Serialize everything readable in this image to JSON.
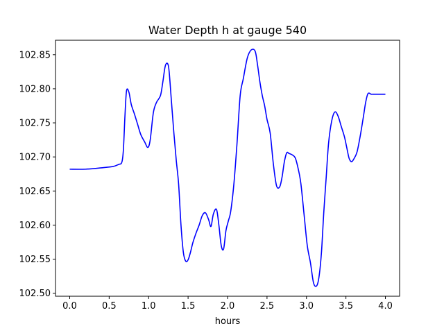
{
  "chart_data": {
    "type": "line",
    "title": "Water Depth h at gauge 540",
    "xlabel": "hours",
    "ylabel": "",
    "xlim": [
      -0.18,
      4.18
    ],
    "ylim": [
      102.4956,
      102.8712
    ],
    "xticks": [
      0.0,
      0.5,
      1.0,
      1.5,
      2.0,
      2.5,
      3.0,
      3.5,
      4.0
    ],
    "xtick_labels": [
      "0.0",
      "0.5",
      "1.0",
      "1.5",
      "2.0",
      "2.5",
      "3.0",
      "3.5",
      "4.0"
    ],
    "yticks": [
      102.5,
      102.55,
      102.6,
      102.65,
      102.7,
      102.75,
      102.8,
      102.85
    ],
    "ytick_labels": [
      "102.50",
      "102.55",
      "102.60",
      "102.65",
      "102.70",
      "102.75",
      "102.80",
      "102.85"
    ],
    "grid": false,
    "series": [
      {
        "color": "#0000ff",
        "x": [
          0.0,
          0.2,
          0.4,
          0.55,
          0.62,
          0.66,
          0.68,
          0.7,
          0.72,
          0.75,
          0.78,
          0.82,
          0.86,
          0.9,
          0.95,
          0.99,
          1.02,
          1.06,
          1.1,
          1.15,
          1.18,
          1.21,
          1.24,
          1.26,
          1.29,
          1.32,
          1.35,
          1.38,
          1.41,
          1.44,
          1.47,
          1.5,
          1.53,
          1.56,
          1.6,
          1.64,
          1.68,
          1.72,
          1.76,
          1.79,
          1.82,
          1.86,
          1.89,
          1.92,
          1.95,
          1.98,
          2.01,
          2.04,
          2.08,
          2.12,
          2.16,
          2.2,
          2.25,
          2.3,
          2.35,
          2.38,
          2.41,
          2.44,
          2.47,
          2.5,
          2.54,
          2.58,
          2.62,
          2.66,
          2.69,
          2.72,
          2.75,
          2.78,
          2.82,
          2.86,
          2.9,
          2.93,
          2.97,
          3.01,
          3.05,
          3.09,
          3.13,
          3.16,
          3.19,
          3.22,
          3.25,
          3.28,
          3.32,
          3.36,
          3.4,
          3.44,
          3.48,
          3.51,
          3.54,
          3.57,
          3.6,
          3.64,
          3.68,
          3.72,
          3.75,
          3.78,
          3.82,
          3.86,
          3.9,
          3.94,
          3.97,
          4.0
        ],
        "values": [
          102.682,
          102.682,
          102.684,
          102.686,
          102.689,
          102.692,
          102.71,
          102.76,
          102.797,
          102.795,
          102.777,
          102.763,
          102.748,
          102.733,
          102.722,
          102.714,
          102.725,
          102.765,
          102.78,
          102.79,
          102.81,
          102.833,
          102.837,
          102.825,
          102.78,
          102.735,
          102.695,
          102.66,
          102.6,
          102.56,
          102.547,
          102.549,
          102.56,
          102.574,
          102.588,
          102.6,
          102.614,
          102.618,
          102.608,
          102.598,
          102.616,
          102.623,
          102.6,
          102.57,
          102.565,
          102.592,
          102.606,
          102.62,
          102.66,
          102.72,
          102.79,
          102.815,
          102.845,
          102.857,
          102.855,
          102.835,
          102.81,
          102.79,
          102.775,
          102.755,
          102.735,
          102.69,
          102.658,
          102.656,
          102.67,
          102.693,
          102.706,
          102.705,
          102.703,
          102.698,
          102.68,
          102.66,
          102.615,
          102.57,
          102.545,
          102.515,
          102.511,
          102.525,
          102.56,
          102.62,
          102.67,
          102.72,
          102.753,
          102.766,
          102.76,
          102.745,
          102.73,
          102.714,
          102.698,
          102.693,
          102.697,
          102.707,
          102.73,
          102.758,
          102.78,
          102.793,
          102.792,
          102.792,
          102.792,
          102.792,
          102.792,
          102.792
        ]
      }
    ]
  }
}
